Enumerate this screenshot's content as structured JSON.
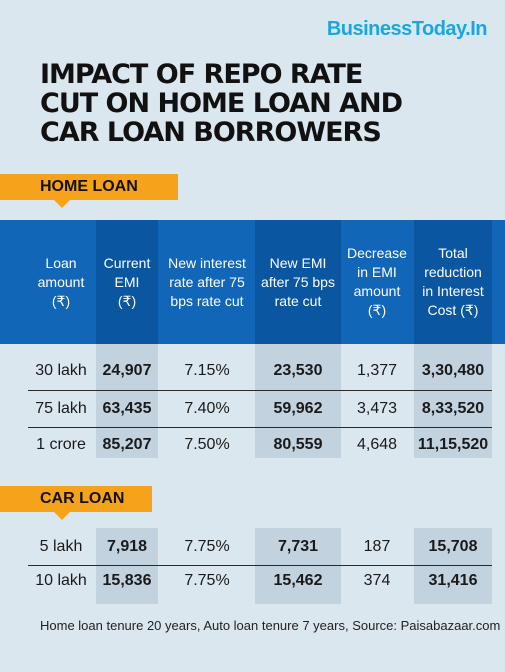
{
  "brand": "BusinessToday.In",
  "title_lines": [
    "IMPACT OF REPO RATE",
    "CUT ON HOME LOAN AND",
    "CAR LOAN BORROWERS"
  ],
  "home_loan_label": "HOME LOAN",
  "car_loan_label": "CAR LOAN",
  "columns": [
    [
      "Loan",
      "amount",
      "(₹)"
    ],
    [
      "Current",
      "EMI",
      "(₹)"
    ],
    [
      "New interest",
      "rate after 75",
      "bps rate cut"
    ],
    [
      "New EMI",
      "after 75 bps",
      "rate cut"
    ],
    [
      "Decrease",
      "in EMI",
      "amount",
      "(₹)"
    ],
    [
      "Total",
      "reduction",
      "in Interest",
      "Cost (₹)"
    ]
  ],
  "home_rows": [
    [
      "30 lakh",
      "24,907",
      "7.15%",
      "23,530",
      "1,377",
      "3,30,480"
    ],
    [
      "75 lakh",
      "63,435",
      "7.40%",
      "59,962",
      "3,473",
      "8,33,520"
    ],
    [
      "1 crore",
      "85,207",
      "7.50%",
      "80,559",
      "4,648",
      "11,15,520"
    ]
  ],
  "car_rows": [
    [
      "5 lakh",
      "7,918",
      "7.75%",
      "7,731",
      "187",
      "15,708"
    ],
    [
      "10 lakh",
      "15,836",
      "7.75%",
      "15,462",
      "374",
      "31,416"
    ]
  ],
  "footnote": "Home loan tenure 20 years, Auto loan tenure 7 years, Source: Paisabazaar.com",
  "colors": {
    "header_blue": "#1266b8",
    "tag_orange": "#f7a21b",
    "background": "#dbe7ef",
    "brand_blue": "#1aa7e0"
  }
}
